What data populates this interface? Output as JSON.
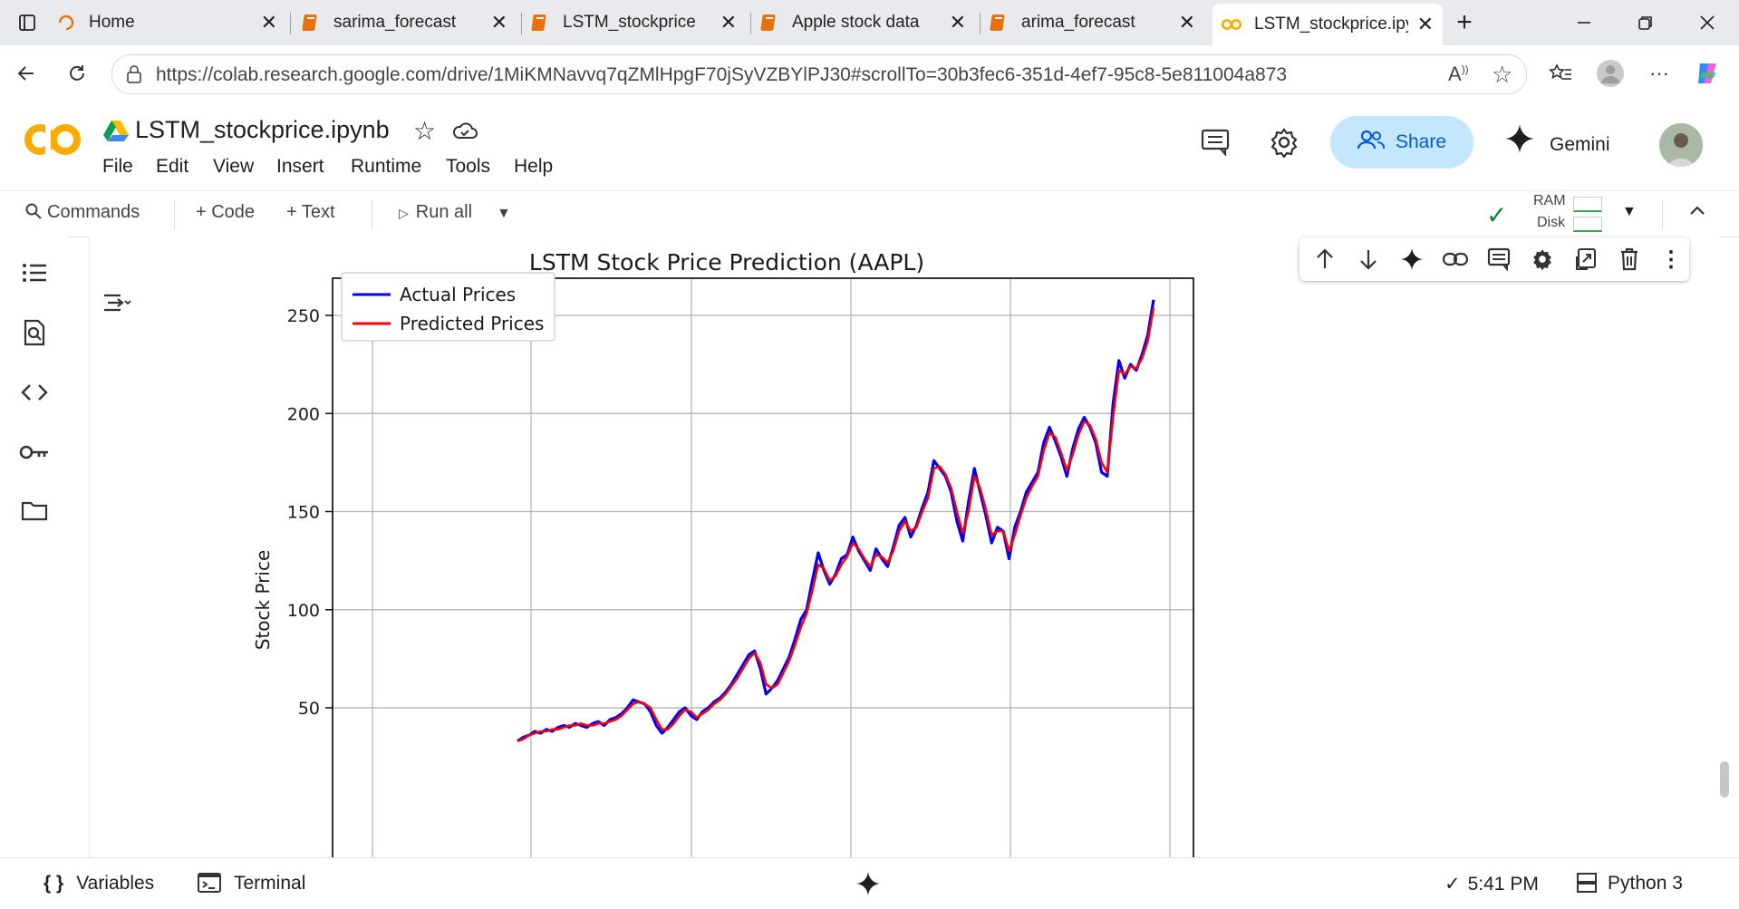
{
  "browser": {
    "tabs": [
      {
        "label": "Home",
        "icon": "edge-loading-icon"
      },
      {
        "label": "sarima_forecast",
        "icon": "notebook-icon"
      },
      {
        "label": "LSTM_stockprice",
        "icon": "notebook-icon"
      },
      {
        "label": "Apple stock data",
        "icon": "notebook-icon"
      },
      {
        "label": "arima_forecast",
        "icon": "notebook-icon"
      },
      {
        "label": "LSTM_stockprice.ipy",
        "icon": "colab-icon",
        "active": true
      }
    ],
    "url": "https://colab.research.google.com/drive/1MiKMNavvq7qZMlHpgF70jSyVZBYlPJ30#scrollTo=30b3fec6-351d-4ef7-95c8-5e811004a873"
  },
  "colab": {
    "logo": "CO",
    "notebook_title": "LSTM_stockprice.ipynb",
    "menu": [
      "File",
      "Edit",
      "View",
      "Insert",
      "Runtime",
      "Tools",
      "Help"
    ],
    "share_label": "Share",
    "gemini_label": "Gemini",
    "toolbar": {
      "commands": "Commands",
      "code": "+ Code",
      "text": "+ Text",
      "run_all": "Run all",
      "ram": "RAM",
      "disk": "Disk"
    }
  },
  "status": {
    "variables": "Variables",
    "terminal": "Terminal",
    "time": "5:41 PM",
    "kernel": "Python 3"
  },
  "colors": {
    "actual": "#0000ff",
    "predicted": "#ff0000",
    "share_bg": "#c2e7ff",
    "colab_orange": "#f9ab00"
  },
  "chart_data": {
    "type": "line",
    "title": "LSTM Stock Price Prediction (AAPL)",
    "xlabel": "",
    "ylabel": "Stock Price",
    "yticks": [
      50,
      100,
      150,
      200,
      250
    ],
    "ylim_visible": [
      33,
      270
    ],
    "grid": true,
    "legend_position": "top-left",
    "series": [
      {
        "name": "Actual Prices",
        "color": "#0000ff",
        "values": [
          33,
          35,
          36,
          38,
          37,
          39,
          38,
          40,
          41,
          40,
          42,
          41,
          40,
          42,
          43,
          41,
          44,
          45,
          47,
          50,
          54,
          53,
          52,
          48,
          41,
          37,
          40,
          44,
          48,
          50,
          46,
          44,
          48,
          50,
          53,
          55,
          58,
          62,
          67,
          72,
          77,
          79,
          70,
          57,
          60,
          64,
          70,
          76,
          85,
          95,
          100,
          115,
          129,
          120,
          113,
          118,
          126,
          128,
          137,
          130,
          125,
          120,
          131,
          126,
          122,
          132,
          143,
          147,
          137,
          143,
          152,
          160,
          176,
          172,
          168,
          160,
          145,
          135,
          155,
          172,
          160,
          148,
          134,
          142,
          140,
          126,
          142,
          150,
          160,
          165,
          170,
          185,
          193,
          186,
          178,
          168,
          182,
          192,
          198,
          193,
          185,
          170,
          168,
          205,
          227,
          218,
          225,
          222,
          230,
          240,
          258
        ]
      },
      {
        "name": "Predicted Prices",
        "color": "#ff0000",
        "values": [
          33,
          34,
          36,
          37,
          38,
          38,
          39,
          39,
          40,
          41,
          41,
          42,
          41,
          41,
          42,
          42,
          43,
          44,
          46,
          49,
          52,
          53,
          52,
          50,
          44,
          39,
          39,
          42,
          46,
          49,
          48,
          45,
          47,
          49,
          52,
          54,
          57,
          61,
          65,
          70,
          75,
          78,
          73,
          62,
          60,
          62,
          68,
          74,
          82,
          91,
          98,
          110,
          123,
          121,
          115,
          117,
          123,
          127,
          134,
          131,
          126,
          122,
          128,
          127,
          124,
          130,
          140,
          145,
          140,
          142,
          150,
          157,
          172,
          173,
          169,
          162,
          150,
          139,
          150,
          168,
          162,
          151,
          138,
          140,
          140,
          130,
          138,
          148,
          157,
          163,
          168,
          181,
          190,
          188,
          180,
          171,
          179,
          189,
          196,
          194,
          187,
          175,
          170,
          198,
          222,
          220,
          224,
          223,
          228,
          237,
          254
        ]
      }
    ]
  }
}
